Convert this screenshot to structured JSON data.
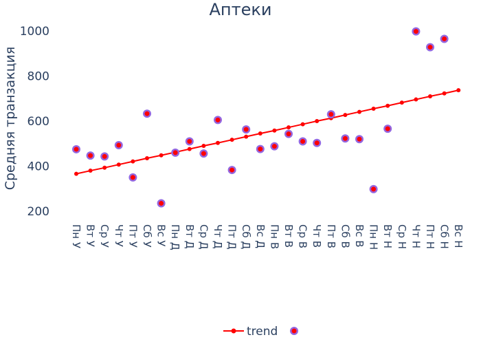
{
  "chart_data": {
    "type": "scatter",
    "title": "Аптеки",
    "xlabel": "",
    "ylabel": "Средняя транзакция",
    "ylim": [
      150,
      1050
    ],
    "yticks": [
      200,
      400,
      600,
      800,
      1000
    ],
    "categories": [
      "Пн У",
      "Вт У",
      "Ср У",
      "Чт У",
      "Пт У",
      "Сб У",
      "Вс У",
      "Пн Д",
      "Вт Д",
      "Ср Д",
      "Чт Д",
      "Пт Д",
      "Сб Д",
      "Вс Д",
      "Пн В",
      "Вт В",
      "Ср В",
      "Чт В",
      "Пт В",
      "Сб В",
      "Вс В",
      "Пн Н",
      "Вт Н",
      "Ср Н",
      "Чт Н",
      "Пт Н",
      "Сб Н",
      "Вс Н"
    ],
    "series": [
      {
        "name": "trend",
        "mode": "lines+markers",
        "color": "#ff0000",
        "values": [
          366,
          380,
          393,
          407,
          421,
          435,
          448,
          462,
          476,
          490,
          503,
          517,
          531,
          545,
          558,
          572,
          586,
          600,
          613,
          627,
          641,
          655,
          668,
          682,
          696,
          710,
          723,
          737
        ]
      },
      {
        "name": "",
        "mode": "markers",
        "color": "#9467e0",
        "inner_color": "#ff0000",
        "values": [
          475,
          447,
          443,
          493,
          350,
          633,
          235,
          460,
          510,
          456,
          605,
          383,
          563,
          476,
          488,
          543,
          510,
          503,
          630,
          523,
          520,
          298,
          566,
          null,
          998,
          928,
          965,
          null
        ]
      }
    ],
    "legend": {
      "position": "bottom-center",
      "entries": [
        "trend",
        ""
      ]
    },
    "grid": false
  }
}
